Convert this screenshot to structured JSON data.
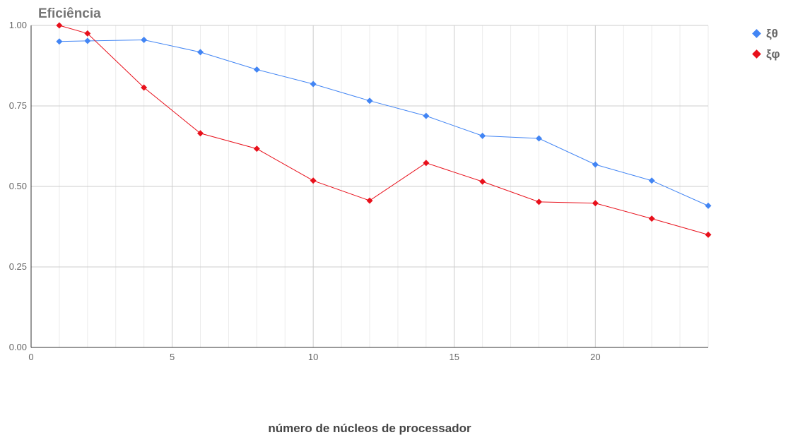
{
  "chart_data": {
    "type": "line",
    "title": "Eficiência",
    "xlabel": "número de núcleos de processador",
    "ylabel": "",
    "xlim": [
      0,
      24
    ],
    "ylim": [
      0,
      1
    ],
    "xticks": [
      0,
      5,
      10,
      15,
      20
    ],
    "xtick_labels": [
      "0",
      "5",
      "10",
      "15",
      "20"
    ],
    "yticks": [
      0,
      0.25,
      0.5,
      0.75,
      1.0
    ],
    "ytick_labels": [
      "0.00",
      "0.25",
      "0.50",
      "0.75",
      "1.00"
    ],
    "grid": true,
    "legend_position": "top-right",
    "series": [
      {
        "name": "ξθ",
        "color": "#4285f4",
        "x": [
          1,
          2,
          4,
          6,
          8,
          10,
          12,
          14,
          16,
          18,
          20,
          22,
          24
        ],
        "y": [
          0.95,
          0.952,
          0.955,
          0.917,
          0.863,
          0.818,
          0.766,
          0.719,
          0.657,
          0.649,
          0.568,
          0.518,
          0.44
        ]
      },
      {
        "name": "ξφ",
        "color": "#e8101b",
        "x": [
          1,
          2,
          4,
          6,
          8,
          10,
          12,
          14,
          16,
          18,
          20,
          22,
          24
        ],
        "y": [
          1.0,
          0.975,
          0.807,
          0.665,
          0.617,
          0.518,
          0.456,
          0.573,
          0.515,
          0.452,
          0.448,
          0.4,
          0.35
        ]
      }
    ]
  }
}
